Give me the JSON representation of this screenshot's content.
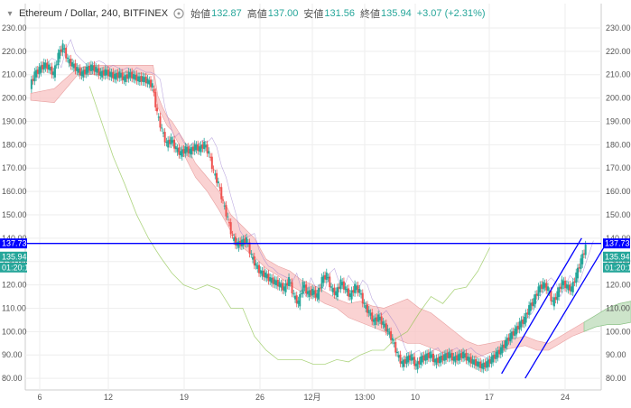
{
  "legend": {
    "symbol": "Ethereum / Dollar, 240, BITFINEX",
    "open_label": "始値",
    "open": "132.87",
    "high_label": "高値",
    "high": "137.00",
    "low_label": "安値",
    "low": "131.56",
    "close_label": "終値",
    "close": "135.94",
    "change": "+3.07 (+2.31%)"
  },
  "price_tags": {
    "line_price": "137.73",
    "last_price": "135.94",
    "countdown": "01:20:11"
  },
  "colors": {
    "up": "#26a69a",
    "down": "#ef5350",
    "line": "#0000ff",
    "cloud_bear": "#f8c3c3",
    "cloud_bull": "#c8e6c9",
    "grid": "#eeeeee"
  },
  "chart_data": {
    "type": "candlestick",
    "y_ticks": [
      "230.00",
      "220.00",
      "210.00",
      "200.00",
      "190.00",
      "180.00",
      "170.00",
      "160.00",
      "150.00",
      "140.00",
      "130.00",
      "120.00",
      "110.00",
      "100.00",
      "90.00",
      "80.00"
    ],
    "x_ticks": [
      "6",
      "12",
      "19",
      "26",
      "12月",
      "13:00",
      "10",
      "17",
      "24"
    ],
    "ylim": [
      75,
      235
    ],
    "horizontal_line": 137.73,
    "close_path": [
      [
        0,
        205
      ],
      [
        4,
        210
      ],
      [
        8,
        212
      ],
      [
        12,
        214
      ],
      [
        16,
        213
      ],
      [
        20,
        210
      ],
      [
        24,
        218
      ],
      [
        28,
        222
      ],
      [
        32,
        216
      ],
      [
        36,
        214
      ],
      [
        40,
        212
      ],
      [
        44,
        210
      ],
      [
        48,
        212
      ],
      [
        52,
        213
      ],
      [
        56,
        212
      ],
      [
        60,
        210
      ],
      [
        64,
        211
      ],
      [
        68,
        210
      ],
      [
        72,
        209
      ],
      [
        76,
        210
      ],
      [
        80,
        208
      ],
      [
        84,
        210
      ],
      [
        88,
        209
      ],
      [
        92,
        208
      ],
      [
        96,
        208
      ],
      [
        100,
        207
      ],
      [
        104,
        205
      ],
      [
        108,
        193
      ],
      [
        112,
        186
      ],
      [
        116,
        180
      ],
      [
        120,
        182
      ],
      [
        124,
        178
      ],
      [
        128,
        176
      ],
      [
        132,
        178
      ],
      [
        136,
        177
      ],
      [
        140,
        179
      ],
      [
        144,
        178
      ],
      [
        148,
        180
      ],
      [
        152,
        176
      ],
      [
        156,
        168
      ],
      [
        160,
        163
      ],
      [
        164,
        155
      ],
      [
        168,
        148
      ],
      [
        172,
        140
      ],
      [
        176,
        137
      ],
      [
        180,
        138
      ],
      [
        184,
        139
      ],
      [
        188,
        132
      ],
      [
        192,
        128
      ],
      [
        196,
        125
      ],
      [
        200,
        124
      ],
      [
        204,
        122
      ],
      [
        208,
        121
      ],
      [
        212,
        120
      ],
      [
        216,
        118
      ],
      [
        220,
        122
      ],
      [
        224,
        115
      ],
      [
        228,
        112
      ],
      [
        232,
        120
      ],
      [
        236,
        116
      ],
      [
        240,
        117
      ],
      [
        244,
        115
      ],
      [
        248,
        122
      ],
      [
        252,
        124
      ],
      [
        256,
        118
      ],
      [
        260,
        116
      ],
      [
        264,
        121
      ],
      [
        268,
        118
      ],
      [
        272,
        115
      ],
      [
        276,
        119
      ],
      [
        280,
        117
      ],
      [
        284,
        111
      ],
      [
        288,
        108
      ],
      [
        292,
        104
      ],
      [
        296,
        106
      ],
      [
        300,
        103
      ],
      [
        304,
        100
      ],
      [
        308,
        96
      ],
      [
        312,
        90
      ],
      [
        316,
        86
      ],
      [
        320,
        88
      ],
      [
        324,
        89
      ],
      [
        328,
        85
      ],
      [
        332,
        88
      ],
      [
        336,
        89
      ],
      [
        340,
        90
      ],
      [
        344,
        87
      ],
      [
        348,
        88
      ],
      [
        352,
        89
      ],
      [
        356,
        90
      ],
      [
        360,
        88
      ],
      [
        364,
        89
      ],
      [
        368,
        90
      ],
      [
        372,
        88
      ],
      [
        376,
        87
      ],
      [
        380,
        86
      ],
      [
        384,
        85
      ],
      [
        388,
        86
      ],
      [
        392,
        88
      ],
      [
        396,
        90
      ],
      [
        400,
        92
      ],
      [
        404,
        95
      ],
      [
        408,
        98
      ],
      [
        412,
        100
      ],
      [
        416,
        103
      ],
      [
        420,
        105
      ],
      [
        424,
        110
      ],
      [
        428,
        113
      ],
      [
        432,
        118
      ],
      [
        436,
        120
      ],
      [
        440,
        118
      ],
      [
        444,
        112
      ],
      [
        448,
        116
      ],
      [
        452,
        121
      ],
      [
        456,
        119
      ],
      [
        460,
        118
      ],
      [
        464,
        124
      ],
      [
        468,
        130
      ],
      [
        472,
        135.94
      ]
    ],
    "cloud_upper": [
      [
        0,
        202
      ],
      [
        20,
        204
      ],
      [
        40,
        213
      ],
      [
        60,
        214
      ],
      [
        80,
        214
      ],
      [
        100,
        214
      ],
      [
        104,
        214
      ],
      [
        108,
        201
      ],
      [
        112,
        196
      ],
      [
        116,
        192
      ],
      [
        120,
        190
      ],
      [
        130,
        182
      ],
      [
        140,
        172
      ],
      [
        150,
        166
      ],
      [
        160,
        160
      ],
      [
        170,
        150
      ],
      [
        180,
        145
      ],
      [
        190,
        140
      ],
      [
        200,
        131
      ],
      [
        210,
        128
      ],
      [
        220,
        126
      ],
      [
        230,
        122
      ],
      [
        240,
        120
      ],
      [
        250,
        117
      ],
      [
        260,
        114
      ],
      [
        270,
        112
      ],
      [
        280,
        113
      ],
      [
        290,
        111
      ],
      [
        300,
        110
      ],
      [
        310,
        112
      ],
      [
        320,
        114
      ],
      [
        330,
        110
      ],
      [
        340,
        108
      ],
      [
        350,
        104
      ],
      [
        360,
        100
      ],
      [
        370,
        96
      ],
      [
        380,
        94
      ],
      [
        390,
        95
      ],
      [
        400,
        96
      ],
      [
        410,
        97
      ],
      [
        420,
        98
      ],
      [
        430,
        96
      ],
      [
        440,
        95
      ],
      [
        450,
        98
      ],
      [
        460,
        101
      ],
      [
        470,
        104
      ],
      [
        480,
        107
      ],
      [
        490,
        110
      ],
      [
        500,
        112
      ],
      [
        510,
        113
      ]
    ],
    "cloud_lower": [
      [
        0,
        199
      ],
      [
        20,
        198
      ],
      [
        40,
        210
      ],
      [
        60,
        210
      ],
      [
        80,
        211
      ],
      [
        100,
        210
      ],
      [
        104,
        210
      ],
      [
        108,
        196
      ],
      [
        112,
        192
      ],
      [
        116,
        188
      ],
      [
        120,
        186
      ],
      [
        130,
        176
      ],
      [
        140,
        166
      ],
      [
        150,
        160
      ],
      [
        160,
        152
      ],
      [
        170,
        143
      ],
      [
        180,
        136
      ],
      [
        190,
        132
      ],
      [
        200,
        127
      ],
      [
        210,
        124
      ],
      [
        220,
        120
      ],
      [
        230,
        117
      ],
      [
        240,
        115
      ],
      [
        250,
        112
      ],
      [
        260,
        110
      ],
      [
        270,
        106
      ],
      [
        280,
        104
      ],
      [
        290,
        102
      ],
      [
        300,
        100
      ],
      [
        310,
        97
      ],
      [
        320,
        95
      ],
      [
        330,
        95
      ],
      [
        340,
        93
      ],
      [
        350,
        91
      ],
      [
        360,
        90
      ],
      [
        370,
        89
      ],
      [
        380,
        89
      ],
      [
        390,
        91
      ],
      [
        400,
        92
      ],
      [
        410,
        93
      ],
      [
        420,
        94
      ],
      [
        430,
        92
      ],
      [
        440,
        92
      ],
      [
        450,
        95
      ],
      [
        460,
        98
      ],
      [
        470,
        100
      ],
      [
        480,
        102
      ],
      [
        490,
        103
      ],
      [
        500,
        103
      ],
      [
        510,
        104
      ]
    ],
    "lagging_span": [
      [
        50,
        205
      ],
      [
        60,
        190
      ],
      [
        70,
        175
      ],
      [
        80,
        163
      ],
      [
        90,
        150
      ],
      [
        100,
        140
      ],
      [
        110,
        132
      ],
      [
        120,
        125
      ],
      [
        130,
        120
      ],
      [
        140,
        118
      ],
      [
        150,
        120
      ],
      [
        160,
        118
      ],
      [
        170,
        110
      ],
      [
        180,
        110
      ],
      [
        190,
        98
      ],
      [
        200,
        92
      ],
      [
        210,
        88
      ],
      [
        220,
        88
      ],
      [
        230,
        88
      ],
      [
        240,
        86
      ],
      [
        250,
        86
      ],
      [
        260,
        88
      ],
      [
        270,
        87
      ],
      [
        280,
        90
      ],
      [
        290,
        92
      ],
      [
        300,
        92
      ],
      [
        310,
        97
      ],
      [
        320,
        100
      ],
      [
        330,
        108
      ],
      [
        340,
        115
      ],
      [
        350,
        112
      ],
      [
        360,
        118
      ],
      [
        370,
        119
      ],
      [
        380,
        126
      ],
      [
        390,
        135.94
      ]
    ],
    "channel_lines": [
      [
        [
          400,
          82
        ],
        [
          468,
          140
        ]
      ],
      [
        [
          420,
          80
        ],
        [
          488,
          137
        ]
      ]
    ]
  }
}
